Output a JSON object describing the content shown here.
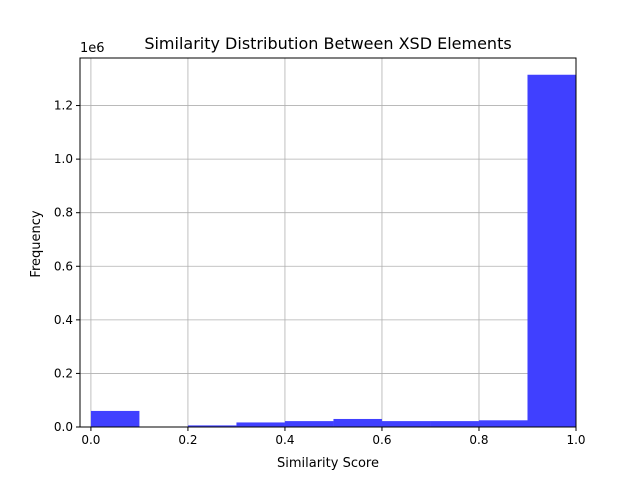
{
  "chart_data": {
    "type": "bar",
    "title": "Similarity Distribution Between XSD Elements",
    "xlabel": "Similarity Score",
    "ylabel": "Frequency",
    "offset_label": "1e6",
    "xlim": [
      -0.0225,
      1.0
    ],
    "ylim": [
      0,
      1.3775
    ],
    "grid": true,
    "bar_color": "#4040ff",
    "x_ticks": [
      {
        "value": 0.0,
        "label": "0.0"
      },
      {
        "value": 0.2,
        "label": "0.2"
      },
      {
        "value": 0.4,
        "label": "0.4"
      },
      {
        "value": 0.6,
        "label": "0.6"
      },
      {
        "value": 0.8,
        "label": "0.8"
      },
      {
        "value": 1.0,
        "label": "1.0"
      }
    ],
    "y_ticks": [
      {
        "value": 0.0,
        "label": "0.0"
      },
      {
        "value": 0.2,
        "label": "0.2"
      },
      {
        "value": 0.4,
        "label": "0.4"
      },
      {
        "value": 0.6,
        "label": "0.6"
      },
      {
        "value": 0.8,
        "label": "0.8"
      },
      {
        "value": 1.0,
        "label": "1.0"
      },
      {
        "value": 1.2,
        "label": "1.2"
      }
    ],
    "bins": [
      {
        "x0": 0.0,
        "x1": 0.1,
        "value": 0.06
      },
      {
        "x0": 0.1,
        "x1": 0.2,
        "value": 0.0
      },
      {
        "x0": 0.2,
        "x1": 0.3,
        "value": 0.006
      },
      {
        "x0": 0.3,
        "x1": 0.4,
        "value": 0.017
      },
      {
        "x0": 0.4,
        "x1": 0.5,
        "value": 0.022
      },
      {
        "x0": 0.5,
        "x1": 0.6,
        "value": 0.03
      },
      {
        "x0": 0.6,
        "x1": 0.7,
        "value": 0.022
      },
      {
        "x0": 0.7,
        "x1": 0.8,
        "value": 0.022
      },
      {
        "x0": 0.8,
        "x1": 0.9,
        "value": 0.025
      },
      {
        "x0": 0.9,
        "x1": 1.0,
        "value": 1.315
      }
    ]
  }
}
